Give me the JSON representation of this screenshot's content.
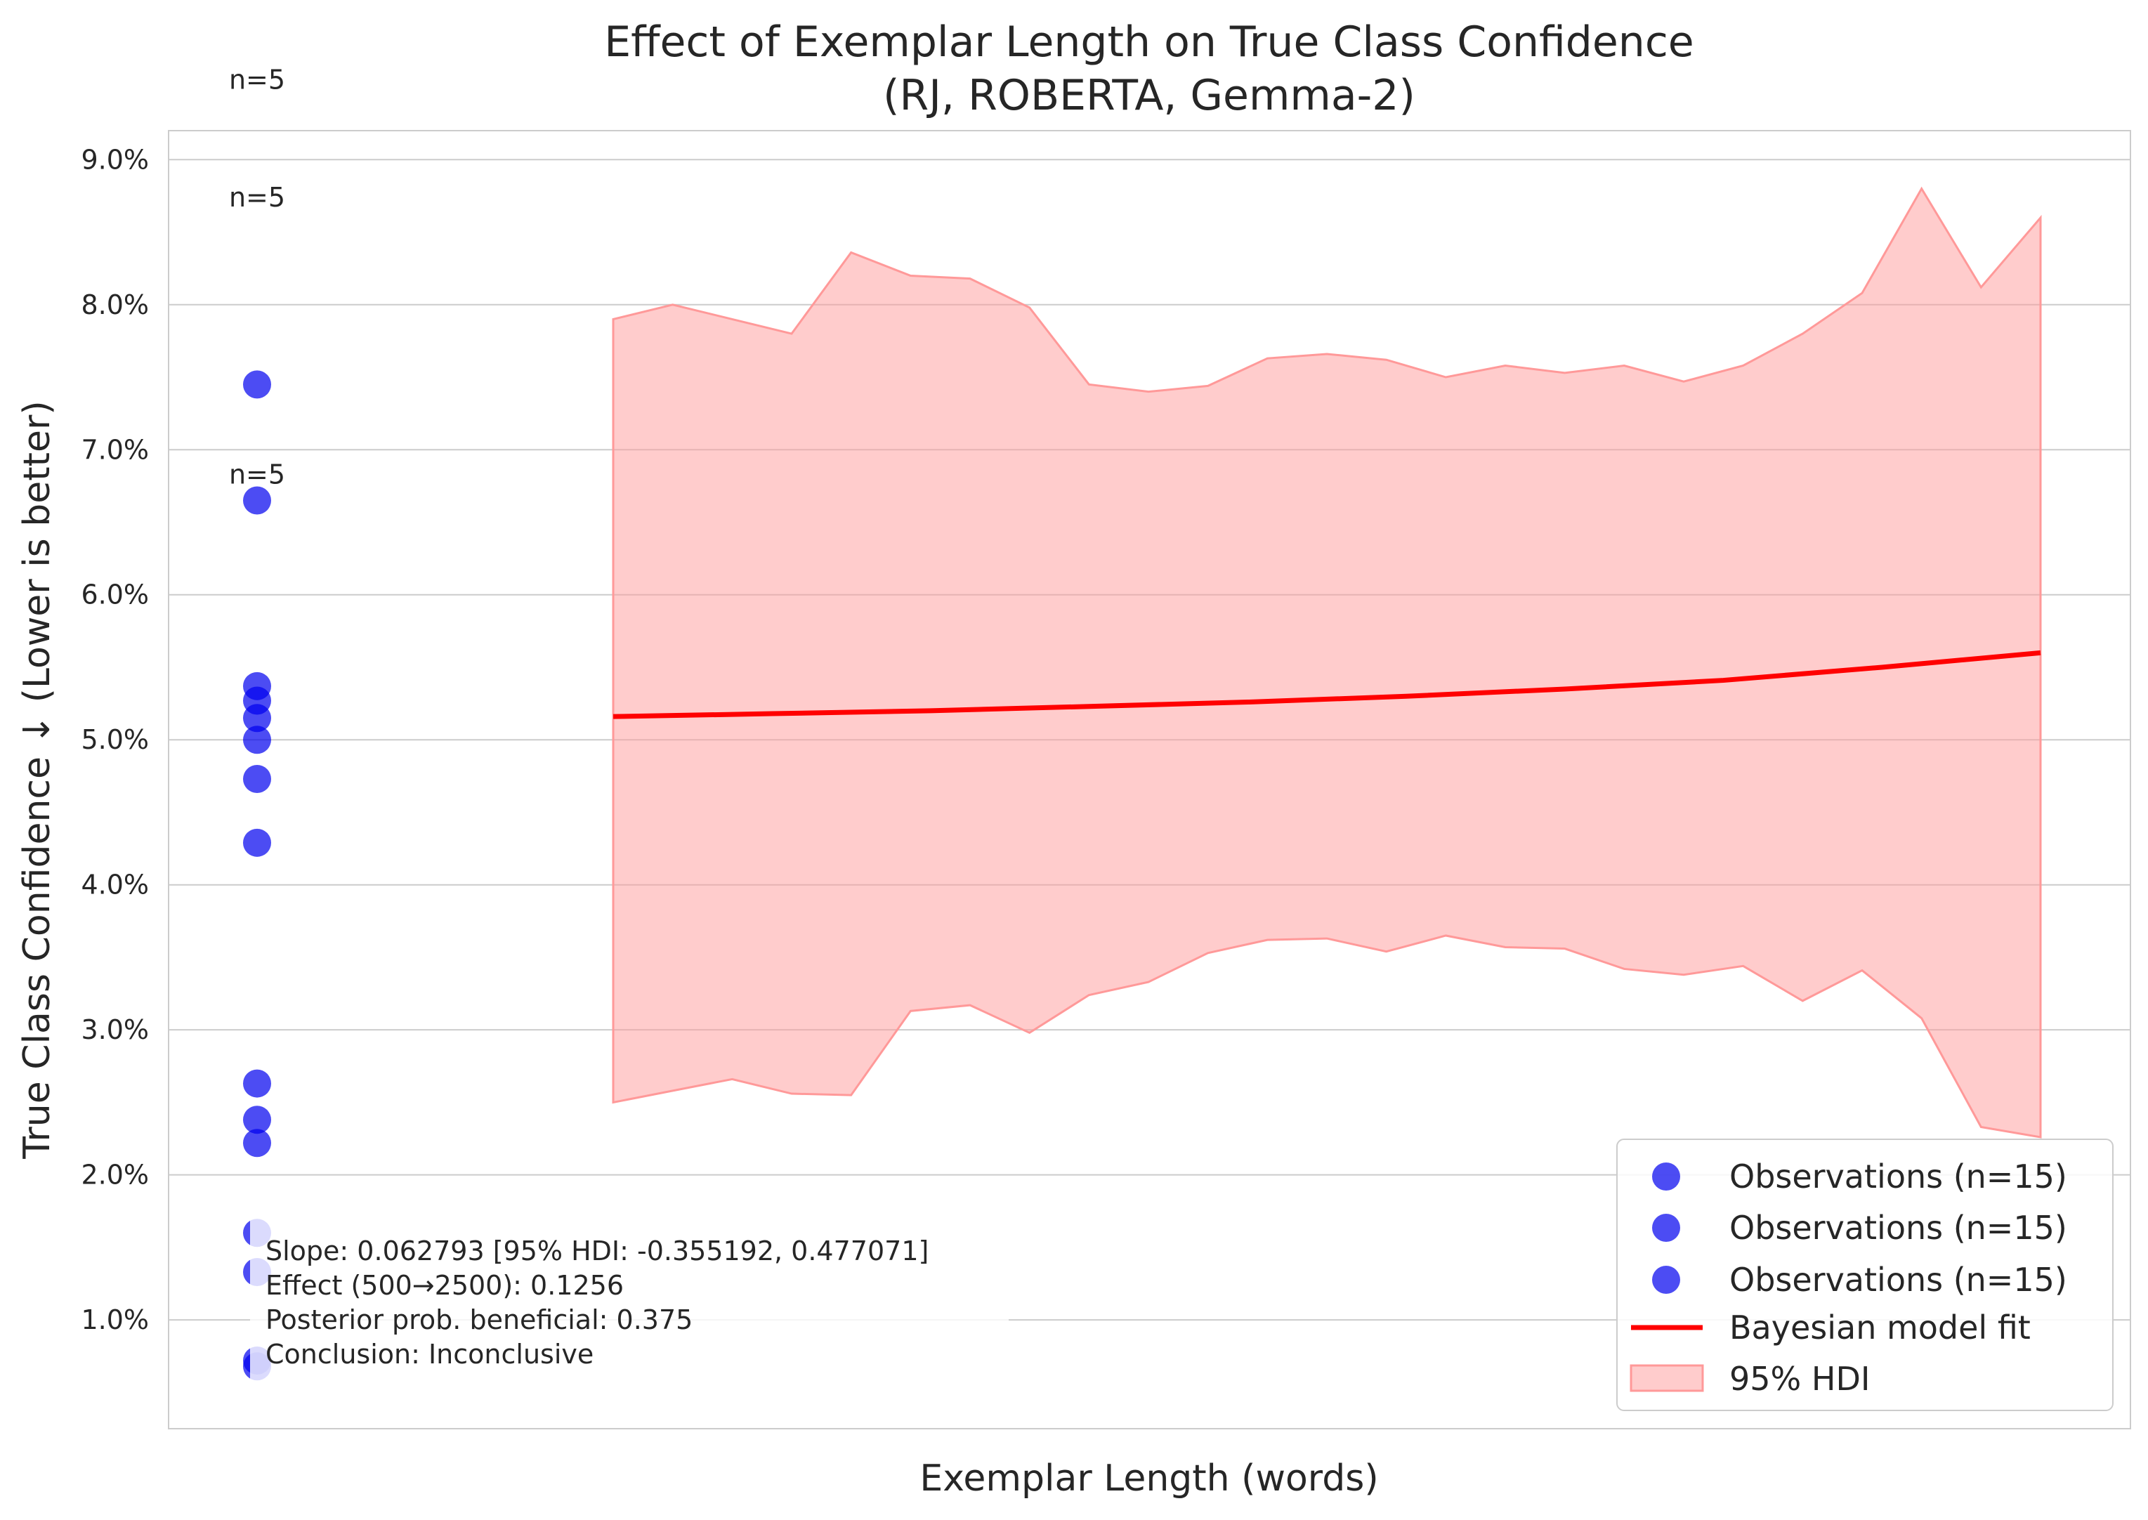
{
  "chart_data": {
    "type": "scatter",
    "title_line1": "Effect of Exemplar Length on True Class Confidence",
    "title_line2": "(RJ, ROBERTA, Gemma-2)",
    "xlabel": "Exemplar Length (words)",
    "ylabel": "True Class Confidence ↓ (Lower is better)",
    "ylim": [
      0.25,
      9.2
    ],
    "y_ticks": [
      1.0,
      2.0,
      3.0,
      4.0,
      5.0,
      6.0,
      7.0,
      8.0,
      9.0
    ],
    "y_tick_labels": [
      "1.0%",
      "2.0%",
      "3.0%",
      "4.0%",
      "5.0%",
      "6.0%",
      "7.0%",
      "8.0%",
      "9.0%"
    ],
    "grid": "horizontal",
    "legend_placement": "lower right",
    "colors": {
      "observations": "#0000ee",
      "fit": "#ff0000",
      "hdi": "#ff9999"
    },
    "observations": [
      7.45,
      6.65,
      5.37,
      5.27,
      5.15,
      5.0,
      4.73,
      4.29,
      2.63,
      2.38,
      2.22,
      1.6,
      1.33,
      0.72,
      0.68
    ],
    "count_labels": [
      {
        "text": "n=5",
        "y": 9.55
      },
      {
        "text": "n=5",
        "y": 8.74
      },
      {
        "text": "n=5",
        "y": 6.83
      }
    ],
    "fit": [
      5.16,
      5.18,
      5.2,
      5.23,
      5.26,
      5.3,
      5.35,
      5.41,
      5.5,
      5.6
    ],
    "hdi_upper": [
      7.9,
      8.0,
      7.9,
      7.8,
      8.36,
      8.2,
      8.18,
      7.98,
      7.45,
      7.4,
      7.44,
      7.63,
      7.66,
      7.62,
      7.5,
      7.58,
      7.53,
      7.58,
      7.47,
      7.58,
      7.8,
      8.08,
      8.8,
      8.12,
      8.6
    ],
    "hdi_lower": [
      2.5,
      2.58,
      2.66,
      2.56,
      2.55,
      3.13,
      3.17,
      2.98,
      3.24,
      3.33,
      3.53,
      3.62,
      3.63,
      3.54,
      3.65,
      3.57,
      3.56,
      3.42,
      3.38,
      3.44,
      3.2,
      3.41,
      3.08,
      2.33,
      2.26
    ],
    "stats": [
      "Slope: 0.062793 [95% HDI: -0.355192, 0.477071]",
      "Effect (500→2500): 0.1256",
      "Posterior prob. beneficial: 0.375",
      "Conclusion: Inconclusive"
    ],
    "legend": [
      {
        "label": "Observations (n=15)",
        "kind": "marker"
      },
      {
        "label": "Observations (n=15)",
        "kind": "marker"
      },
      {
        "label": "Observations (n=15)",
        "kind": "marker"
      },
      {
        "label": "Bayesian model fit",
        "kind": "line"
      },
      {
        "label": "95% HDI",
        "kind": "patch"
      }
    ]
  }
}
